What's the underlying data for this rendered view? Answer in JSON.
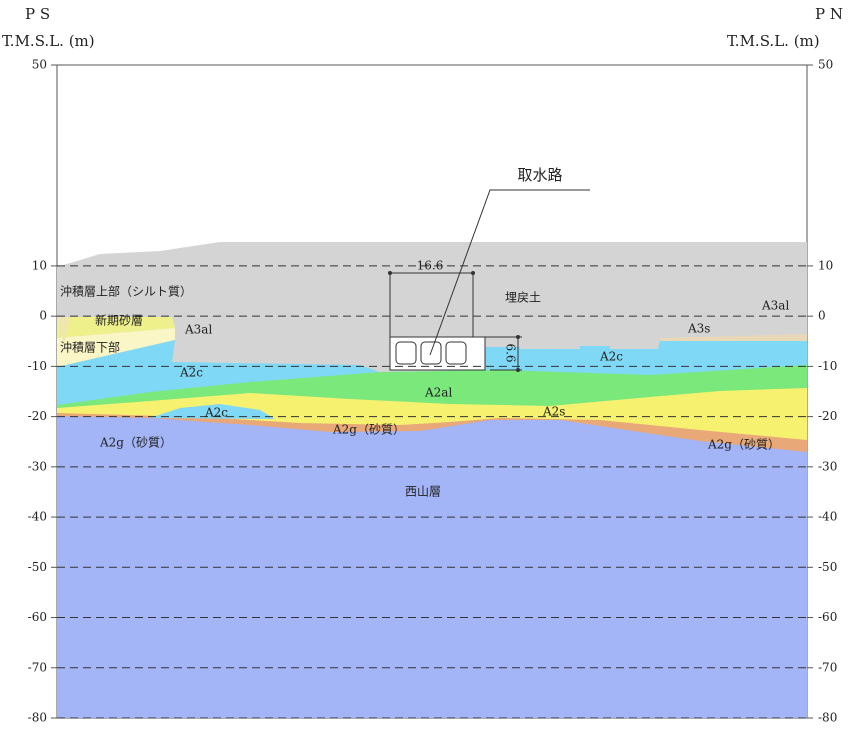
{
  "left_header": {
    "section": "P S",
    "unit": "T.M.S.L. (m)"
  },
  "right_header": {
    "section": "P N",
    "unit": "T.M.S.L. (m)"
  },
  "yticks": [
    50,
    10,
    0,
    -10,
    -20,
    -30,
    -40,
    -50,
    -60,
    -70,
    -80
  ],
  "structure": {
    "name": "取水路",
    "width": "16.6",
    "height": "6.6"
  },
  "layers": [
    {
      "label": "沖積層上部（シルト質）"
    },
    {
      "label": "新期砂層"
    },
    {
      "label": "沖積層下部"
    },
    {
      "label": "A3al"
    },
    {
      "label": "A2c"
    },
    {
      "label": "A2c"
    },
    {
      "label": "A2g（砂質）"
    },
    {
      "label": "埋戻土"
    },
    {
      "label": "A3al"
    },
    {
      "label": "A3s"
    },
    {
      "label": "A2c"
    },
    {
      "label": "A2al"
    },
    {
      "label": "A2s"
    },
    {
      "label": "A2g（砂質）"
    },
    {
      "label": "A2g（砂質）"
    },
    {
      "label": "西山層"
    }
  ]
}
